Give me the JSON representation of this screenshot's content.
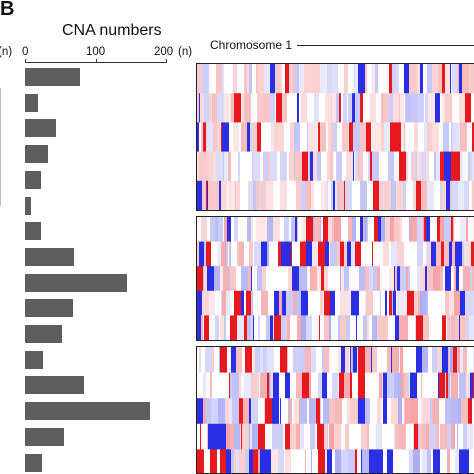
{
  "panel_letter": "B",
  "chromosome_label": "Chromosome 1",
  "left_cut_label": "(n)",
  "chart_data": {
    "type": "bar",
    "orientation": "horizontal",
    "title": "CNA numbers",
    "unit_label": "(n)",
    "xlim": [
      0,
      200
    ],
    "ticks": [
      "0",
      "100",
      "200"
    ],
    "values": [
      78,
      18,
      44,
      32,
      22,
      8,
      23,
      70,
      145,
      68,
      52,
      26,
      83,
      178,
      55,
      24
    ]
  },
  "heatmap": {
    "panel_rows": [
      5,
      5,
      5
    ],
    "colors": {
      "gain": "#e8191e",
      "loss": "#2a2fe6",
      "neutral": "#ffffff"
    }
  }
}
